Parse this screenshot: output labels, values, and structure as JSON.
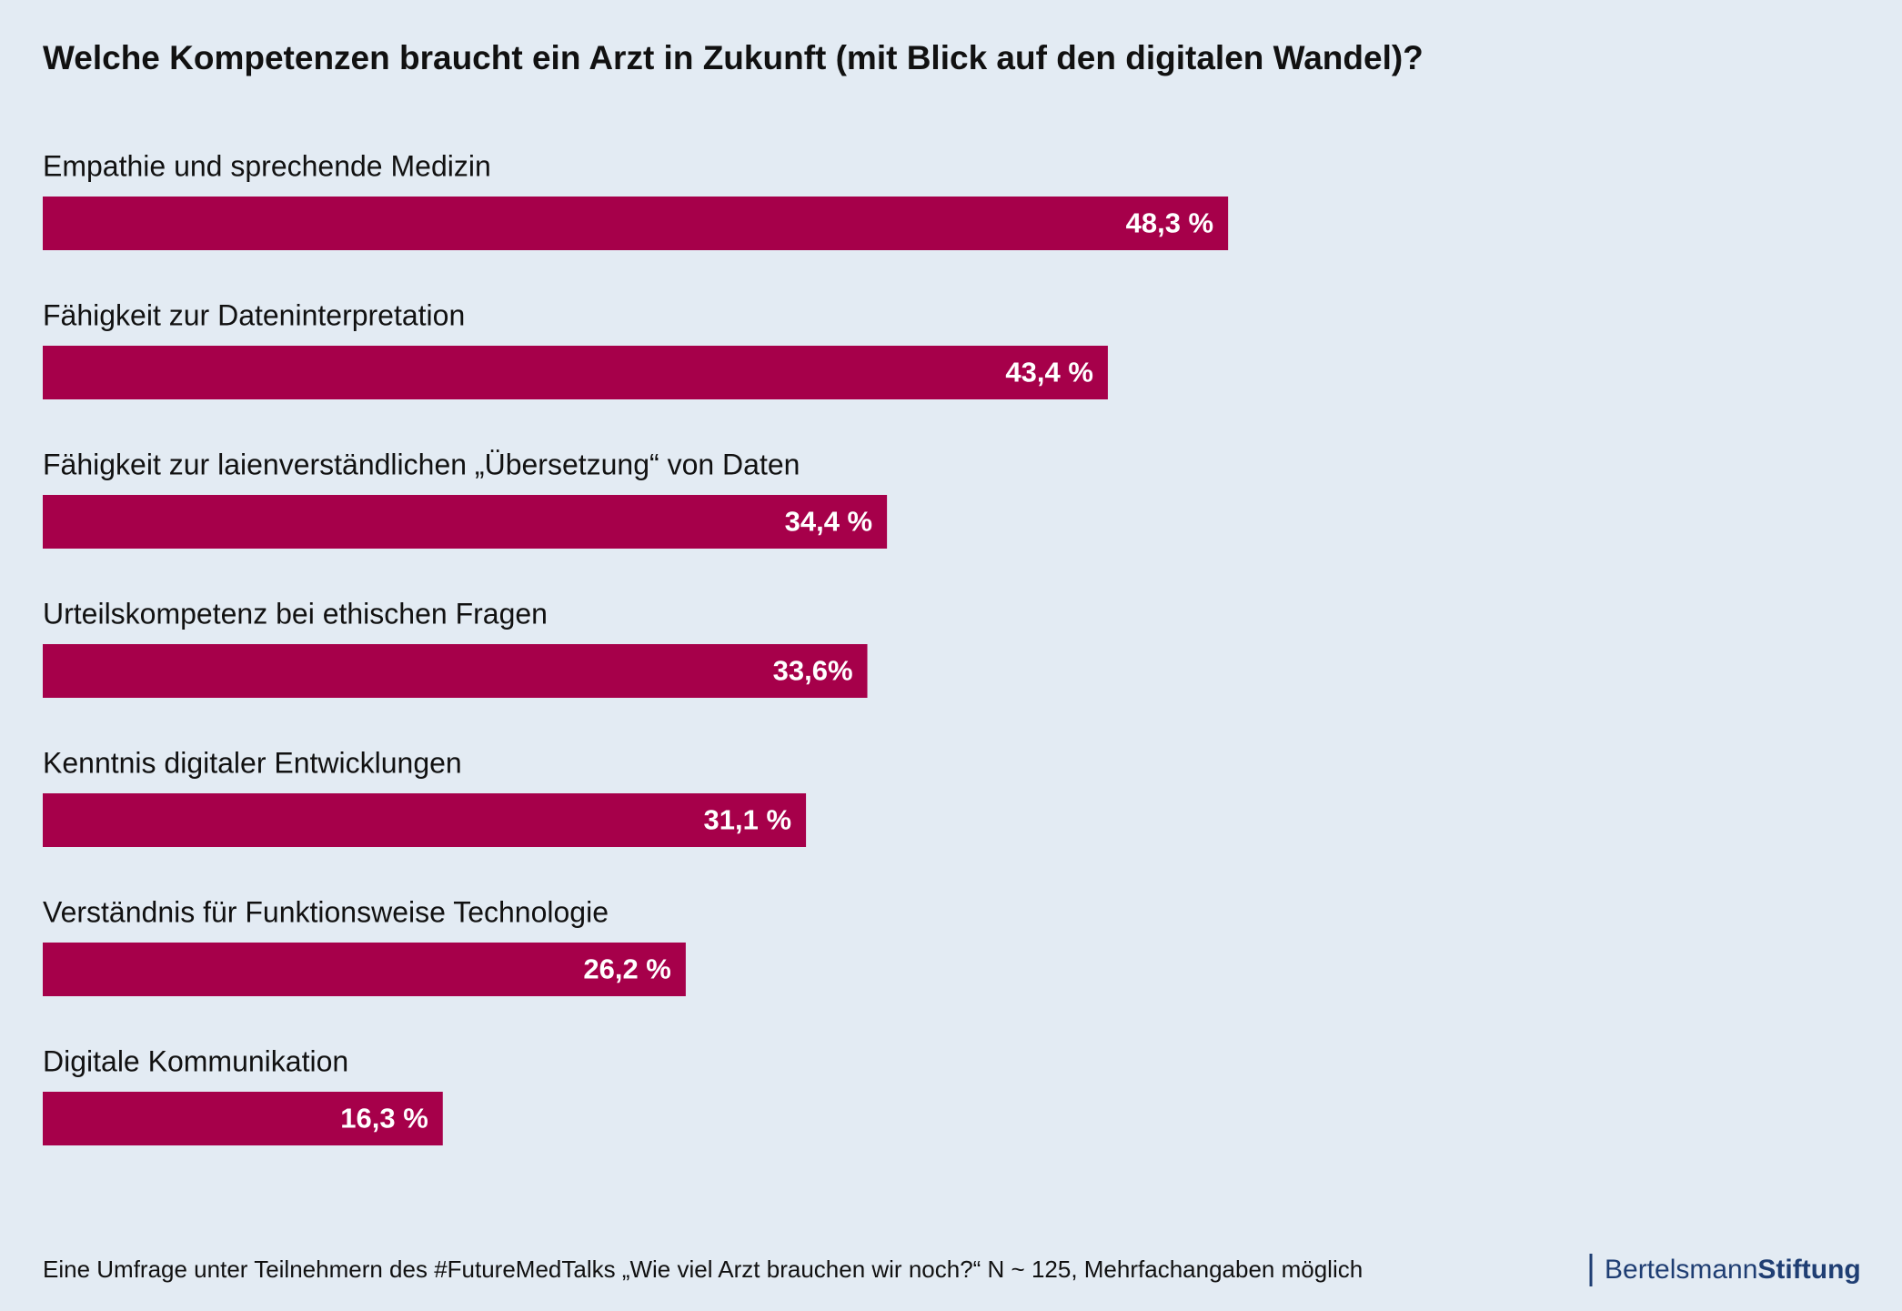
{
  "chart_data": {
    "type": "bar",
    "orientation": "horizontal",
    "title": "Welche Kompetenzen braucht ein Arzt in Zukunft (mit Blick auf den digitalen Wandel)?",
    "categories": [
      "Empathie und sprechende Medizin",
      "Fähigkeit zur Dateninterpretation",
      "Fähigkeit zur laienverständlichen „Übersetzung“ von Daten",
      "Urteilskompetenz bei ethischen Fragen",
      "Kenntnis digitaler Entwicklungen",
      "Verständnis für Funktionsweise Technologie",
      "Digitale Kommunikation"
    ],
    "values": [
      48.3,
      43.4,
      34.4,
      33.6,
      31.1,
      26.2,
      16.3
    ],
    "value_labels": [
      "48,3 %",
      "43,4 %",
      "34,4 %",
      "33,6%",
      "31,1 %",
      "26,2 %",
      "16,3 %"
    ],
    "color": "#a6004a",
    "note": "Eine Umfrage unter Teilnehmern des #FutureMedTalks „Wie viel Arzt brauchen wir noch?“ N ~ 125, Mehrfachangaben möglich",
    "logo": [
      "Bertelsmann",
      "Stiftung"
    ]
  }
}
